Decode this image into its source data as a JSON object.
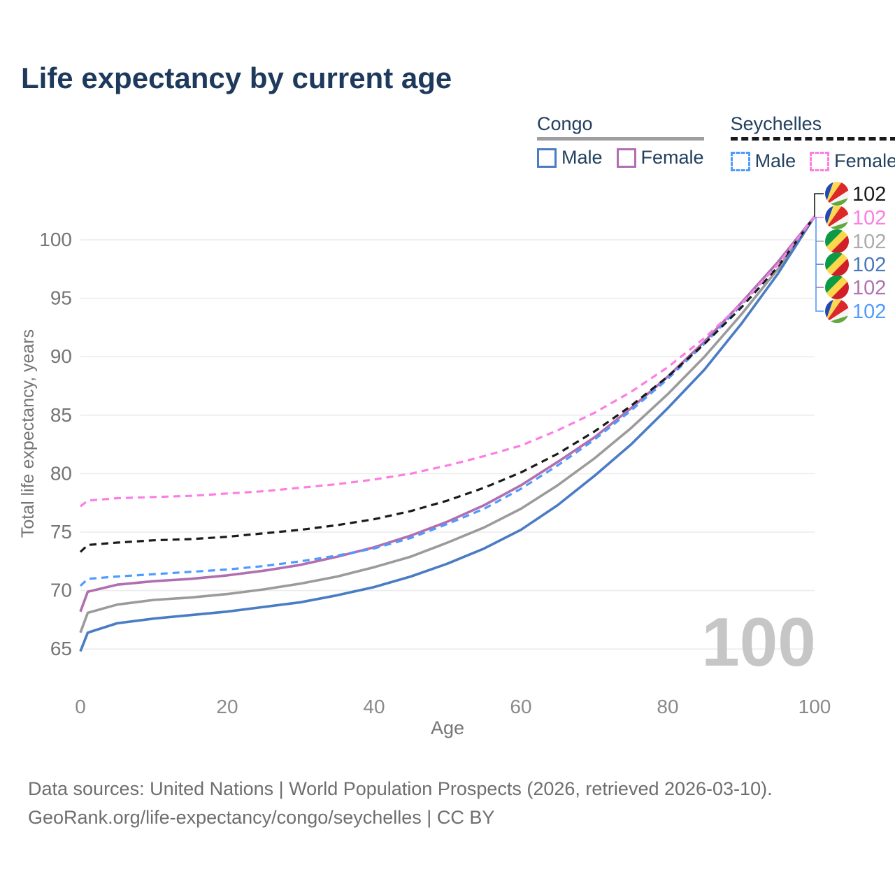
{
  "title": "Life expectancy by current age",
  "legend": {
    "groups": [
      {
        "name": "Congo",
        "line_style": "solid",
        "underline_color": "#9e9e9e",
        "items": [
          {
            "label": "Male",
            "color": "#4a7cc4"
          },
          {
            "label": "Female",
            "color": "#b06fb0"
          }
        ]
      },
      {
        "name": "Seychelles",
        "line_style": "dashed",
        "underline_color": "#1a1a1a",
        "items": [
          {
            "label": "Male",
            "color": "#4f9aff"
          },
          {
            "label": "Female",
            "color": "#fc7ee2"
          }
        ]
      }
    ]
  },
  "end_labels": [
    {
      "value": "102",
      "color": "#1a1a1a",
      "flag": "seychelles",
      "series": "Seychelles"
    },
    {
      "value": "102",
      "color": "#fc7ee2",
      "flag": "seychelles",
      "series": "Seychelles Female"
    },
    {
      "value": "102",
      "color": "#ababab",
      "flag": "congo",
      "series": "Congo"
    },
    {
      "value": "102",
      "color": "#4a78bb",
      "flag": "congo",
      "series": "Congo Male"
    },
    {
      "value": "102",
      "color": "#b173ae",
      "flag": "congo",
      "series": "Congo Female"
    },
    {
      "value": "102",
      "color": "#4f9bfc",
      "flag": "seychelles",
      "series": "Seychelles Male"
    }
  ],
  "watermark": "100",
  "chart_data": {
    "type": "line",
    "title": "Life expectancy by current age",
    "xlabel": "Age",
    "ylabel": "Total life expectancy, years",
    "xlim": [
      0,
      100
    ],
    "ylim": [
      63,
      103
    ],
    "xticks": [
      0,
      20,
      40,
      60,
      80,
      100
    ],
    "yticks": [
      65,
      70,
      75,
      80,
      85,
      90,
      95,
      100
    ],
    "grid": "horizontal-only",
    "legend_position": "top-right",
    "x": [
      0,
      1,
      5,
      10,
      15,
      20,
      25,
      30,
      35,
      40,
      45,
      50,
      55,
      60,
      65,
      70,
      75,
      80,
      85,
      90,
      95,
      100
    ],
    "series": [
      {
        "name": "Congo",
        "country": "Congo",
        "sex": "all",
        "color": "#9b9b9b",
        "dash": false,
        "values": [
          66.4,
          68.1,
          68.8,
          69.2,
          69.4,
          69.7,
          70.1,
          70.6,
          71.2,
          72.0,
          72.9,
          74.1,
          75.4,
          77.0,
          79.0,
          81.3,
          83.9,
          86.8,
          90.0,
          93.6,
          97.5,
          102
        ]
      },
      {
        "name": "Congo Male",
        "country": "Congo",
        "sex": "male",
        "color": "#4a7cc4",
        "dash": false,
        "values": [
          64.8,
          66.4,
          67.2,
          67.6,
          67.9,
          68.2,
          68.6,
          69.0,
          69.6,
          70.3,
          71.2,
          72.3,
          73.6,
          75.2,
          77.3,
          79.8,
          82.5,
          85.6,
          88.9,
          92.8,
          97.1,
          102
        ]
      },
      {
        "name": "Congo Female",
        "country": "Congo",
        "sex": "female",
        "color": "#b06fb0",
        "dash": false,
        "values": [
          68.2,
          69.9,
          70.5,
          70.8,
          71.0,
          71.3,
          71.7,
          72.2,
          72.9,
          73.7,
          74.7,
          75.9,
          77.3,
          79.0,
          81.0,
          83.1,
          85.6,
          88.3,
          91.3,
          94.6,
          98.1,
          102
        ]
      },
      {
        "name": "Seychelles Male",
        "country": "Seychelles",
        "sex": "male",
        "color": "#4f9aff",
        "dash": true,
        "values": [
          70.4,
          71.0,
          71.2,
          71.4,
          71.6,
          71.8,
          72.1,
          72.5,
          73.0,
          73.6,
          74.5,
          75.7,
          77.0,
          78.7,
          80.7,
          82.9,
          85.4,
          88.1,
          91.1,
          94.4,
          97.9,
          102
        ]
      },
      {
        "name": "Seychelles",
        "country": "Seychelles",
        "sex": "all",
        "color": "#1a1a1a",
        "dash": true,
        "values": [
          73.3,
          73.9,
          74.1,
          74.3,
          74.4,
          74.6,
          74.9,
          75.2,
          75.6,
          76.1,
          76.8,
          77.7,
          78.8,
          80.1,
          81.7,
          83.6,
          85.8,
          88.3,
          91.1,
          94.2,
          97.7,
          102
        ]
      },
      {
        "name": "Seychelles Female",
        "country": "Seychelles",
        "sex": "female",
        "color": "#fc7ee2",
        "dash": true,
        "values": [
          77.2,
          77.7,
          77.9,
          78.0,
          78.1,
          78.3,
          78.5,
          78.8,
          79.1,
          79.5,
          80.0,
          80.7,
          81.5,
          82.4,
          83.7,
          85.2,
          87.0,
          89.1,
          91.6,
          94.5,
          97.9,
          102
        ]
      }
    ],
    "end_value": 102
  },
  "flag_colors": {
    "seychelles": {
      "blue": "#2448b1",
      "yellow": "#fcd955",
      "red": "#dc2828",
      "white": "#f5f5f5",
      "green": "#62a83e"
    },
    "congo": {
      "green": "#0d9a44",
      "yellow": "#fbd84a",
      "red": "#d01f2a"
    }
  },
  "footer": {
    "line1": "Data sources: United Nations | World Population Prospects (2026, retrieved 2026-03-10).",
    "line2": "GeoRank.org/life-expectancy/congo/seychelles | CC BY"
  }
}
